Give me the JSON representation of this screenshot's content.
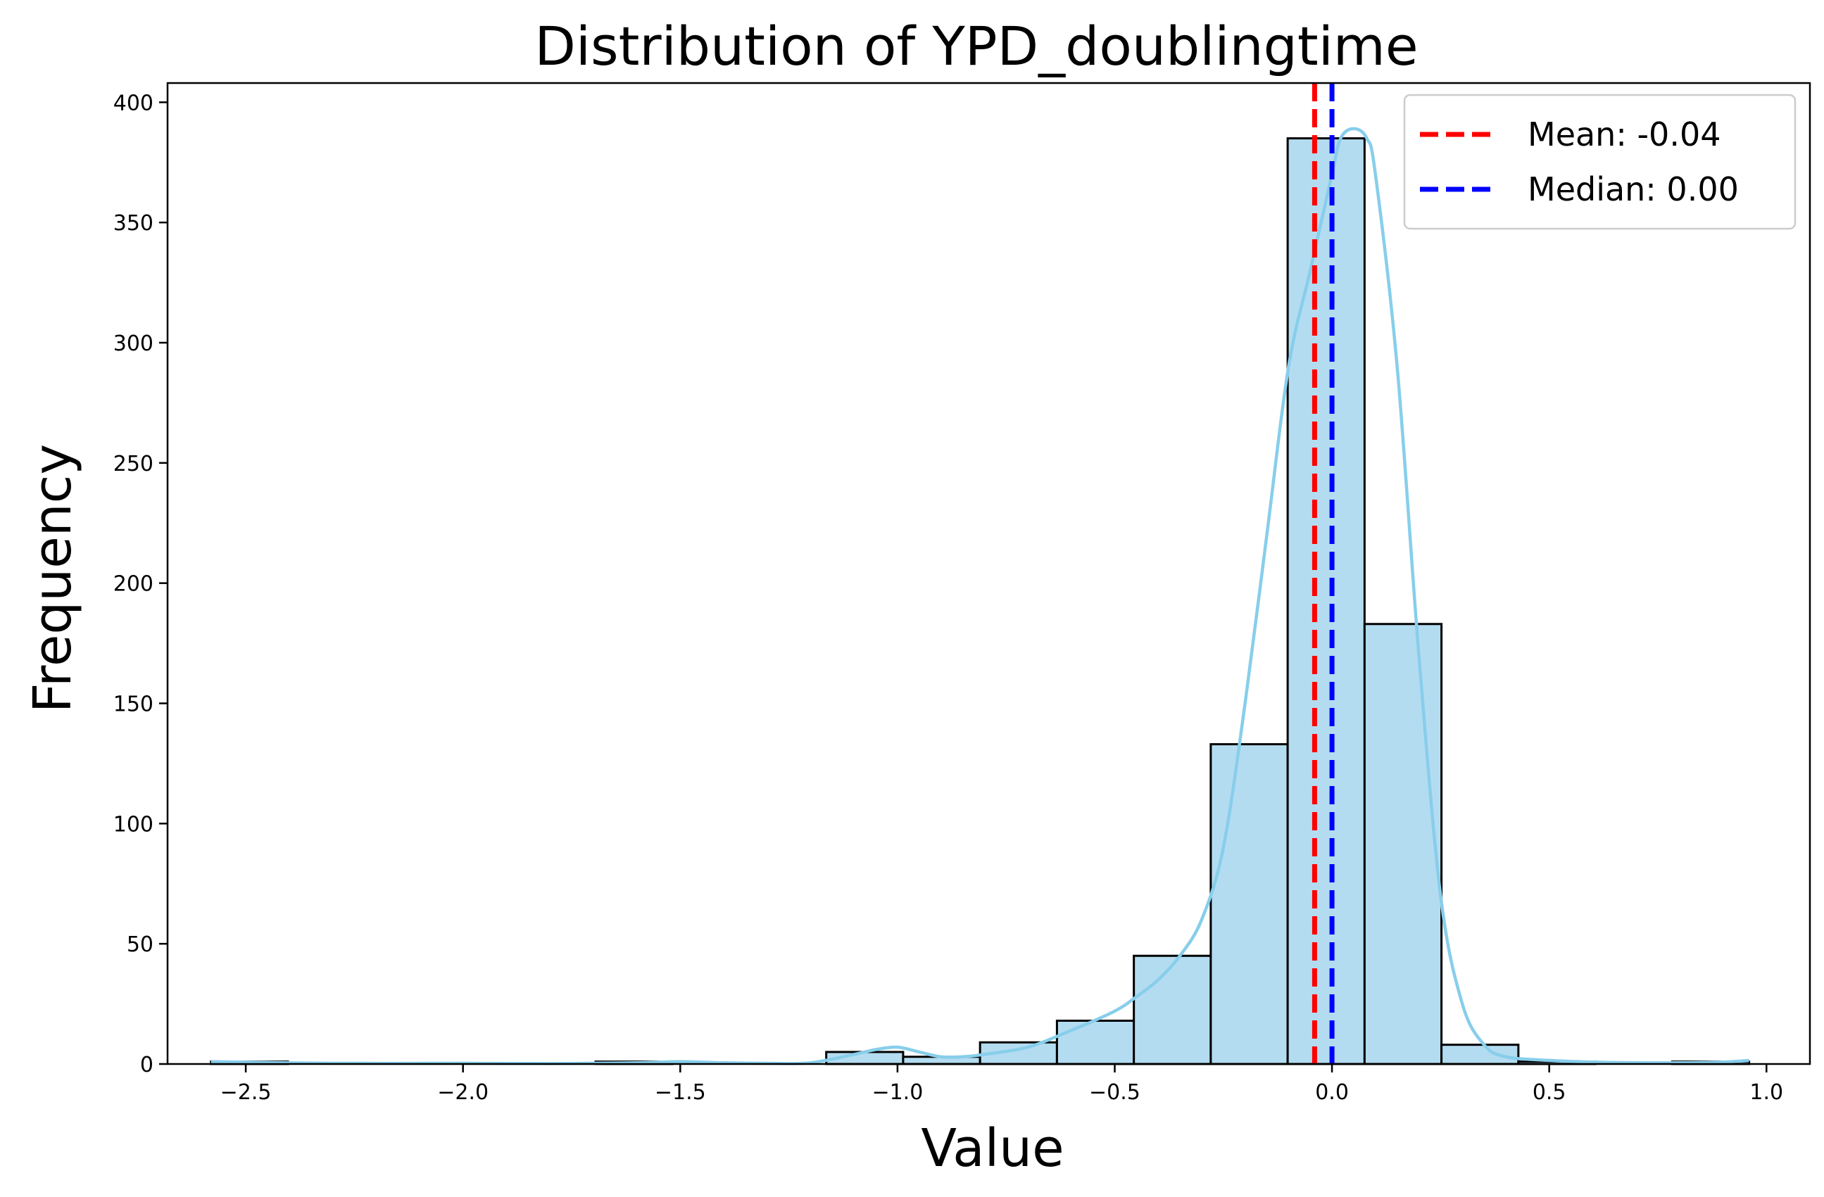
{
  "chart_data": {
    "type": "bar",
    "title": "Distribution of YPD_doublingtime",
    "xlabel": "Value",
    "ylabel": "Frequency",
    "xlim": [
      -2.68,
      1.1
    ],
    "ylim": [
      0,
      408
    ],
    "xticks": [
      -2.5,
      -2.0,
      -1.5,
      -1.0,
      -0.5,
      0.0,
      0.5,
      1.0
    ],
    "xtick_labels": [
      "−2.5",
      "−2.0",
      "−1.5",
      "−1.0",
      "−0.5",
      "0.0",
      "0.5",
      "1.0"
    ],
    "yticks": [
      0,
      50,
      100,
      150,
      200,
      250,
      300,
      350,
      400
    ],
    "ytick_labels": [
      "0",
      "50",
      "100",
      "150",
      "200",
      "250",
      "300",
      "350",
      "400"
    ],
    "bin_edges": [
      -2.58,
      -2.403,
      -2.226,
      -2.049,
      -1.872,
      -1.695,
      -1.518,
      -1.341,
      -1.164,
      -0.987,
      -0.81,
      -0.633,
      -0.456,
      -0.279,
      -0.102,
      0.075,
      0.252,
      0.429,
      0.606,
      0.783,
      0.96
    ],
    "counts": [
      1,
      0,
      0,
      0,
      0,
      1,
      0,
      0,
      5,
      3,
      9,
      18,
      45,
      133,
      385,
      183,
      8,
      1,
      0,
      1
    ],
    "kde": {
      "x": [
        -2.58,
        -2.3,
        -2.0,
        -1.8,
        -1.6,
        -1.5,
        -1.4,
        -1.3,
        -1.2,
        -1.1,
        -1.05,
        -1.0,
        -0.95,
        -0.9,
        -0.85,
        -0.8,
        -0.7,
        -0.6,
        -0.5,
        -0.45,
        -0.4,
        -0.35,
        -0.3,
        -0.25,
        -0.2,
        -0.15,
        -0.1,
        -0.05,
        0.0,
        0.02,
        0.05,
        0.08,
        0.1,
        0.15,
        0.2,
        0.25,
        0.3,
        0.35,
        0.4,
        0.5,
        0.6,
        0.7,
        0.8,
        0.9,
        0.96
      ],
      "y": [
        1,
        0.3,
        0.3,
        0.2,
        0.5,
        1,
        0.5,
        0.3,
        0.5,
        4,
        6,
        7,
        5,
        3,
        3,
        4,
        7,
        14,
        22,
        28,
        35,
        45,
        60,
        90,
        150,
        220,
        290,
        330,
        370,
        385,
        389,
        385,
        370,
        290,
        170,
        70,
        25,
        8,
        3,
        1.5,
        0.8,
        0.5,
        0.5,
        0.8,
        1.5
      ]
    },
    "mean": -0.04,
    "median": 0.0,
    "legend_position": "top-right",
    "legend": [
      {
        "label": "Mean: -0.04",
        "color": "#ff0000"
      },
      {
        "label": "Median: 0.00",
        "color": "#0000ff"
      }
    ],
    "bar_fill": "#b4dcf0",
    "bar_edge": "#000000",
    "kde_color": "#87ceeb",
    "grid": false
  }
}
